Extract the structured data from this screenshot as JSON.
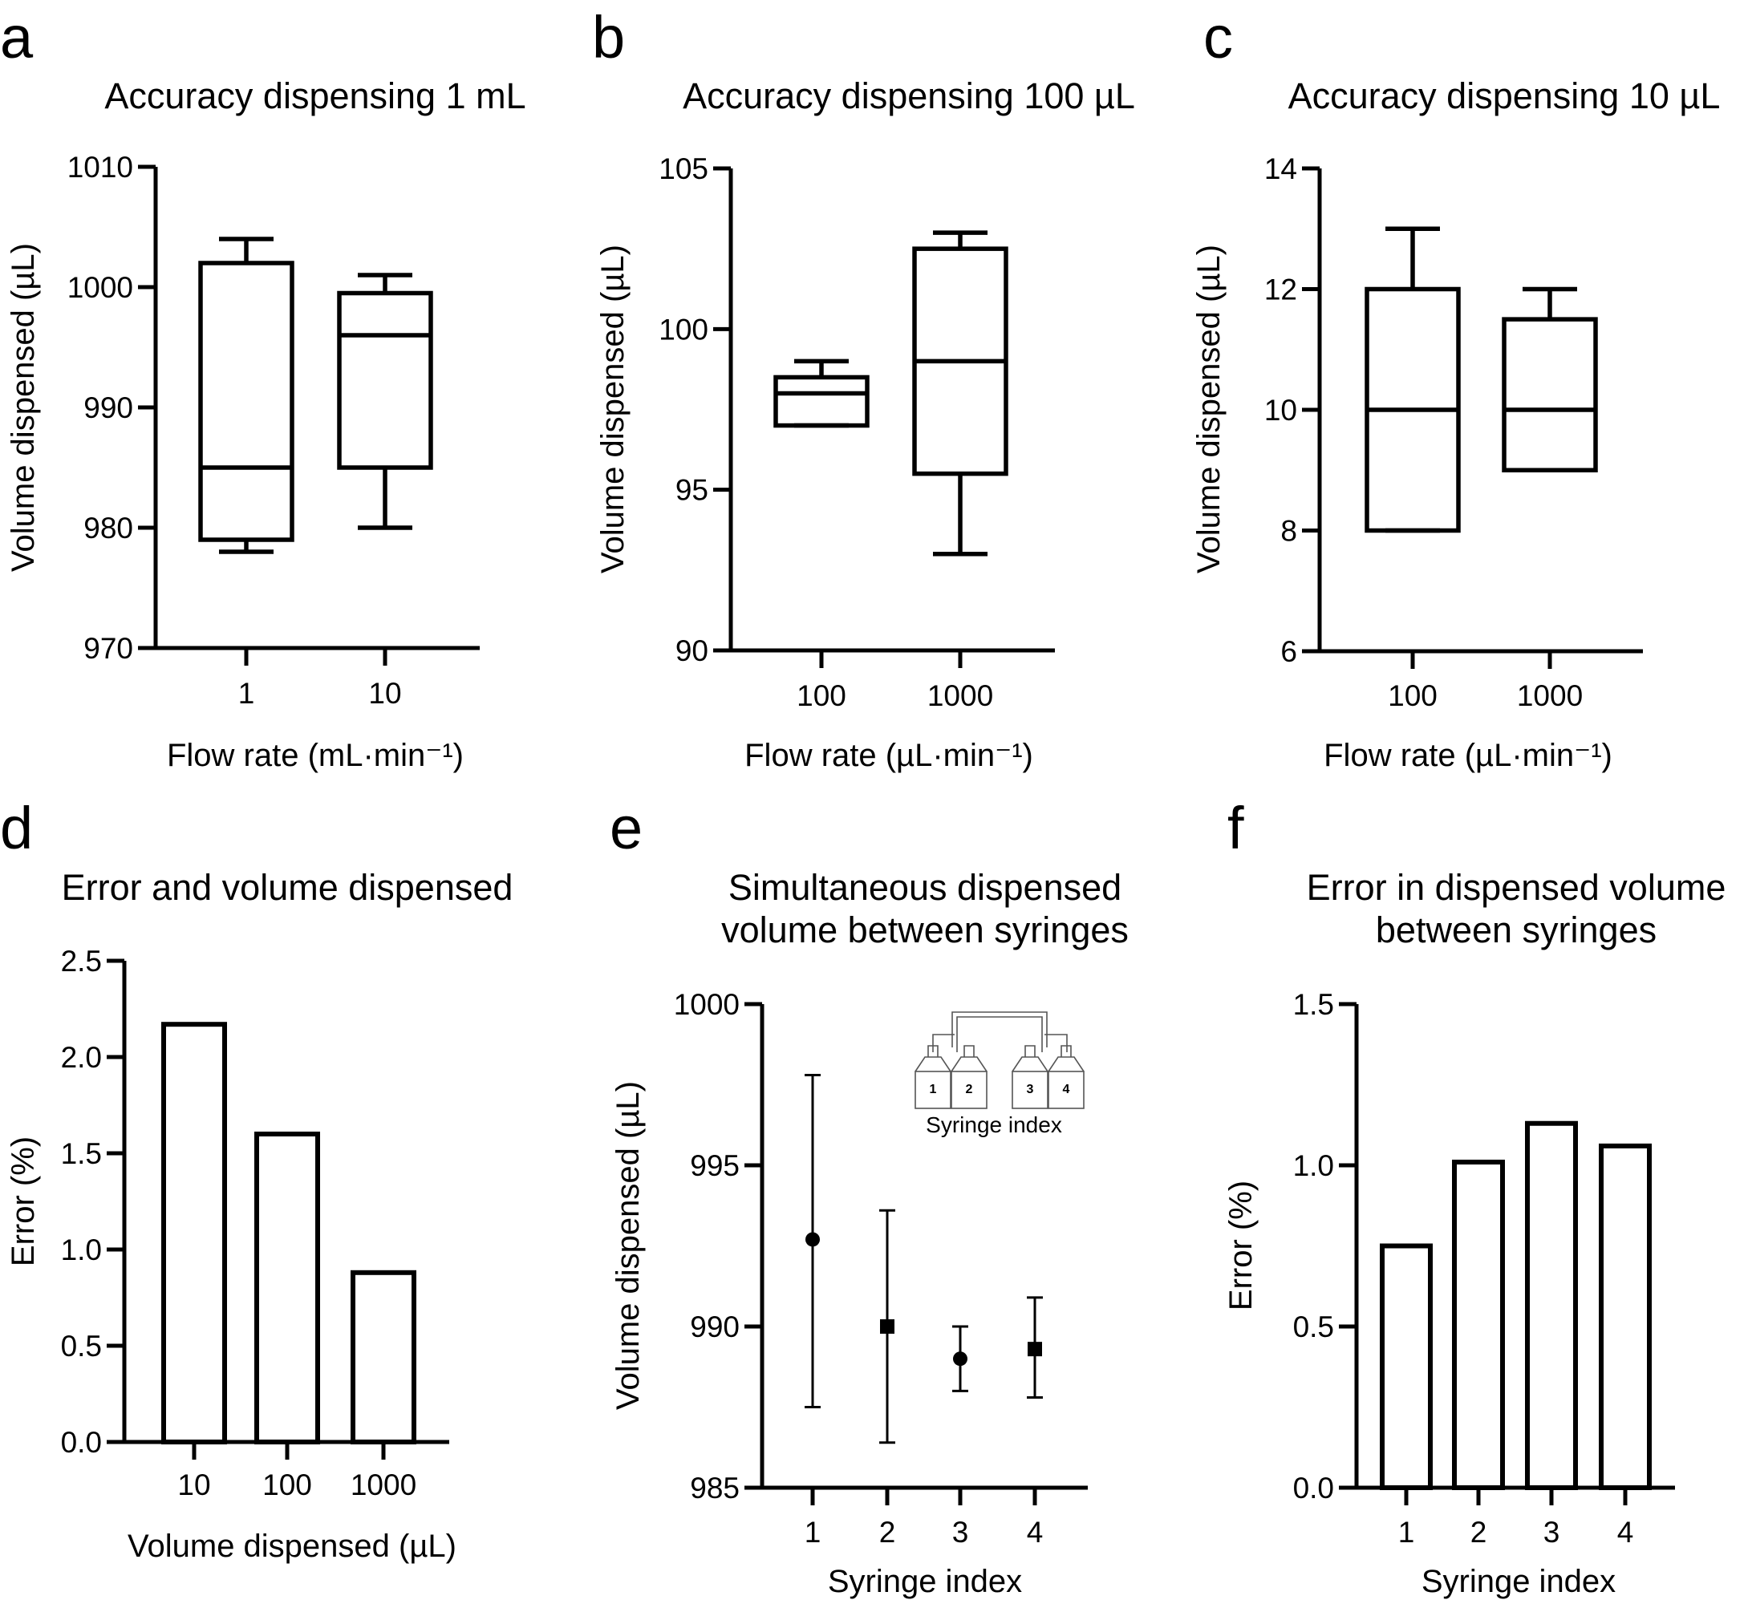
{
  "chart_data": [
    {
      "panel": "a",
      "type": "box",
      "title": "Accuracy dispensing 1 mL",
      "xlabel": "Flow rate (mL·min⁻¹)",
      "ylabel": "Volume dispensed (µL)",
      "ylim": [
        970,
        1010
      ],
      "yticks": [
        "970",
        "980",
        "990",
        "1000",
        "1010"
      ],
      "categories": [
        "1",
        "10"
      ],
      "boxes": [
        {
          "min": 978,
          "q1": 979,
          "median": 985,
          "q3": 1002,
          "max": 1004
        },
        {
          "min": 980,
          "q1": 985,
          "median": 996,
          "q3": 999.5,
          "max": 1001
        }
      ]
    },
    {
      "panel": "b",
      "type": "box",
      "title": "Accuracy dispensing 100 µL",
      "xlabel": "Flow rate (µL·min⁻¹)",
      "ylabel": "Volume dispensed (µL)",
      "ylim": [
        90,
        105
      ],
      "yticks": [
        "90",
        "95",
        "100",
        "105"
      ],
      "categories": [
        "100",
        "1000"
      ],
      "boxes": [
        {
          "min": 97,
          "q1": 97,
          "median": 98,
          "q3": 98.5,
          "max": 99
        },
        {
          "min": 93,
          "q1": 95.5,
          "median": 99,
          "q3": 102.5,
          "max": 103
        }
      ]
    },
    {
      "panel": "c",
      "type": "box",
      "title": "Accuracy dispensing 10 µL",
      "xlabel": "Flow rate (µL·min⁻¹)",
      "ylabel": "Volume dispensed (µL)",
      "ylim": [
        6,
        14
      ],
      "yticks": [
        "6",
        "8",
        "10",
        "12",
        "14"
      ],
      "categories": [
        "100",
        "1000"
      ],
      "boxes": [
        {
          "min": 8,
          "q1": 8,
          "median": 10,
          "q3": 12,
          "max": 13
        },
        {
          "min": 9,
          "q1": 9,
          "median": 10,
          "q3": 11.5,
          "max": 12
        }
      ]
    },
    {
      "panel": "d",
      "type": "bar",
      "title": "Error and volume dispensed",
      "xlabel": "Volume dispensed (µL)",
      "ylabel": "Error (%)",
      "ylim": [
        0,
        2.5
      ],
      "yticks": [
        "0.0",
        "0.5",
        "1.0",
        "1.5",
        "2.0",
        "2.5"
      ],
      "categories": [
        "10",
        "100",
        "1000"
      ],
      "values": [
        2.17,
        1.6,
        0.88
      ]
    },
    {
      "panel": "e",
      "type": "scatter",
      "title": [
        "Simultaneous dispensed",
        "volume between syringes"
      ],
      "xlabel": "Syringe index",
      "ylabel": "Volume dispensed (µL)",
      "ylim": [
        985,
        1000
      ],
      "yticks": [
        "985",
        "990",
        "995",
        "1000"
      ],
      "categories": [
        "1",
        "2",
        "3",
        "4"
      ],
      "points": [
        {
          "y": 992.7,
          "low": 987.5,
          "high": 997.8,
          "marker": "circle"
        },
        {
          "y": 990,
          "low": 986.4,
          "high": 993.6,
          "marker": "square"
        },
        {
          "y": 989,
          "low": 988,
          "high": 990,
          "marker": "circle"
        },
        {
          "y": 989.3,
          "low": 987.8,
          "high": 990.9,
          "marker": "square"
        }
      ],
      "inset": {
        "label": "Syringe index",
        "numbers": [
          "1",
          "2",
          "3",
          "4"
        ]
      }
    },
    {
      "panel": "f",
      "type": "bar",
      "title": [
        "Error in dispensed volume",
        "between syringes"
      ],
      "xlabel": "Syringe index",
      "ylabel": "Error (%)",
      "ylim": [
        0,
        1.5
      ],
      "yticks": [
        "0.0",
        "0.5",
        "1.0",
        "1.5"
      ],
      "categories": [
        "1",
        "2",
        "3",
        "4"
      ],
      "values": [
        0.75,
        1.01,
        1.13,
        1.06
      ]
    }
  ]
}
